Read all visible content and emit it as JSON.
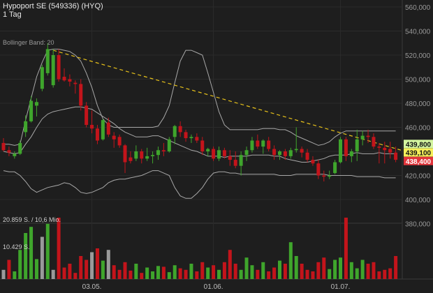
{
  "header": {
    "title": "Hypoport SE (549336) (HYQ)",
    "interval": "1 Tag"
  },
  "indicator_label": "Bollinger Band: 20",
  "volume_label_top": "20.859 S. / 10,6 Mio.",
  "volume_label_mid": "10.429 S.",
  "colors": {
    "up": "#3fa52c",
    "down": "#c3141b",
    "neutral": "#9a9a9a",
    "band": "#a8a8a8",
    "trend": "#e8c21a",
    "badge_upper": "#d4f5a0",
    "badge_last": "#f6f05a",
    "badge_lower": "#e2353b"
  },
  "chart_data": {
    "type": "candlestick",
    "title": "Hypoport SE (549336) (HYQ)",
    "price_axis": {
      "ylim": [
        370000,
        567000
      ],
      "ticks": [
        "560,000",
        "540,000",
        "520,000",
        "500,000",
        "480,000",
        "460,000",
        "440,000",
        "420,000",
        "400,000",
        "380,000"
      ],
      "tick_values": [
        560000,
        540000,
        520000,
        500000,
        480000,
        460000,
        440000,
        420000,
        400000,
        380000
      ]
    },
    "x_ticks": [
      {
        "label": "03.05.",
        "index": 16
      },
      {
        "label": "01.06.",
        "index": 38
      },
      {
        "label": "01.07.",
        "index": 61
      }
    ],
    "badges": [
      {
        "label": "439,800",
        "value": 439800,
        "kind": "upper"
      },
      {
        "label": "439,100",
        "value": 439100,
        "kind": "last"
      },
      {
        "label": "438,400",
        "value": 438400,
        "kind": "lower"
      }
    ],
    "trendline": {
      "from": {
        "index": 9,
        "price": 524000
      },
      "to": {
        "index": 72,
        "price": 441000
      }
    },
    "bollinger": {
      "upper": [
        446,
        446,
        445,
        446,
        466,
        484,
        502,
        514,
        524,
        525,
        525,
        524,
        523,
        520,
        515,
        505,
        493,
        478,
        467,
        462,
        460,
        460,
        460,
        460,
        460,
        460,
        460,
        460,
        461,
        468,
        478,
        497,
        515,
        524,
        524,
        522,
        520,
        505,
        489,
        473,
        462,
        458,
        458,
        458,
        458,
        458,
        458,
        459,
        459,
        459,
        458,
        458,
        456,
        453,
        451,
        449,
        447,
        445,
        446,
        448,
        452,
        455,
        457,
        457,
        457,
        457,
        457,
        457,
        457,
        457,
        457,
        457
      ],
      "middle": [
        440,
        439,
        438,
        439,
        446,
        452,
        460,
        467,
        471,
        473,
        474,
        475,
        476,
        477,
        477,
        476,
        475,
        472,
        469,
        466,
        463,
        459,
        456,
        454,
        452,
        452,
        452,
        453,
        453,
        451,
        449,
        447,
        445,
        443,
        441,
        440,
        438,
        436,
        436,
        436,
        435,
        436,
        436,
        436,
        436,
        437,
        437,
        437,
        437,
        436,
        436,
        434,
        433,
        432,
        431,
        431,
        432,
        433,
        434,
        436,
        437,
        437,
        437,
        438,
        439,
        438,
        438,
        438,
        439,
        438,
        438,
        438
      ],
      "lower": [
        424,
        423,
        423,
        420,
        415,
        409,
        406,
        408,
        410,
        411,
        412,
        414,
        413,
        410,
        406,
        405,
        406,
        408,
        410,
        414,
        416,
        417,
        417,
        418,
        419,
        420,
        422,
        424,
        424,
        422,
        420,
        410,
        403,
        401,
        401,
        405,
        410,
        417,
        422,
        423,
        423,
        422,
        422,
        421,
        421,
        421,
        421,
        421,
        421,
        421,
        420,
        420,
        420,
        421,
        421,
        421,
        421,
        421,
        421,
        420,
        420,
        420,
        420,
        420,
        419,
        419,
        419,
        419,
        419,
        418,
        418,
        418
      ]
    },
    "candles": [
      {
        "o": 447,
        "h": 451,
        "l": 440,
        "c": 441,
        "v": 12
      },
      {
        "o": 441,
        "h": 444,
        "l": 436,
        "c": 439,
        "v": 25
      },
      {
        "o": 436,
        "h": 440,
        "l": 434,
        "c": 438,
        "v": 10
      },
      {
        "o": 438,
        "h": 449,
        "l": 437,
        "c": 447,
        "v": 38
      },
      {
        "o": 456,
        "h": 470,
        "l": 452,
        "c": 465,
        "v": 60
      },
      {
        "o": 465,
        "h": 486,
        "l": 464,
        "c": 482,
        "v": 68
      },
      {
        "o": 478,
        "h": 484,
        "l": 469,
        "c": 481,
        "v": 26
      },
      {
        "o": 492,
        "h": 512,
        "l": 490,
        "c": 510,
        "v": 55
      },
      {
        "o": 505,
        "h": 530,
        "l": 503,
        "c": 525,
        "v": 72
      },
      {
        "o": 495,
        "h": 525,
        "l": 493,
        "c": 520,
        "v": 12
      },
      {
        "o": 520,
        "h": 525,
        "l": 498,
        "c": 500,
        "v": 80
      },
      {
        "o": 502,
        "h": 509,
        "l": 498,
        "c": 499,
        "v": 15
      },
      {
        "o": 500,
        "h": 504,
        "l": 494,
        "c": 498,
        "v": 20
      },
      {
        "o": 497,
        "h": 499,
        "l": 488,
        "c": 496,
        "v": 8
      },
      {
        "o": 496,
        "h": 500,
        "l": 474,
        "c": 478,
        "v": 30
      },
      {
        "o": 478,
        "h": 481,
        "l": 460,
        "c": 462,
        "v": 25
      },
      {
        "o": 462,
        "h": 474,
        "l": 455,
        "c": 459,
        "v": 35
      },
      {
        "o": 459,
        "h": 462,
        "l": 446,
        "c": 449,
        "v": 40
      },
      {
        "o": 450,
        "h": 467,
        "l": 449,
        "c": 466,
        "v": 24
      },
      {
        "o": 464,
        "h": 468,
        "l": 452,
        "c": 454,
        "v": 38
      },
      {
        "o": 453,
        "h": 456,
        "l": 443,
        "c": 450,
        "v": 18
      },
      {
        "o": 452,
        "h": 454,
        "l": 443,
        "c": 445,
        "v": 12
      },
      {
        "o": 445,
        "h": 446,
        "l": 422,
        "c": 431,
        "v": 22
      },
      {
        "o": 435,
        "h": 440,
        "l": 430,
        "c": 432,
        "v": 11
      },
      {
        "o": 434,
        "h": 445,
        "l": 432,
        "c": 440,
        "v": 20
      },
      {
        "o": 440,
        "h": 442,
        "l": 430,
        "c": 434,
        "v": 8
      },
      {
        "o": 434,
        "h": 443,
        "l": 432,
        "c": 436,
        "v": 15
      },
      {
        "o": 436,
        "h": 440,
        "l": 430,
        "c": 437,
        "v": 10
      },
      {
        "o": 437,
        "h": 444,
        "l": 433,
        "c": 441,
        "v": 17
      },
      {
        "o": 441,
        "h": 447,
        "l": 436,
        "c": 440,
        "v": 16
      },
      {
        "o": 440,
        "h": 452,
        "l": 439,
        "c": 450,
        "v": 9
      },
      {
        "o": 452,
        "h": 462,
        "l": 446,
        "c": 461,
        "v": 18
      },
      {
        "o": 461,
        "h": 465,
        "l": 452,
        "c": 456,
        "v": 14
      },
      {
        "o": 456,
        "h": 458,
        "l": 448,
        "c": 451,
        "v": 12
      },
      {
        "o": 451,
        "h": 454,
        "l": 447,
        "c": 452,
        "v": 20
      },
      {
        "o": 452,
        "h": 455,
        "l": 447,
        "c": 449,
        "v": 10
      },
      {
        "o": 449,
        "h": 452,
        "l": 437,
        "c": 440,
        "v": 22
      },
      {
        "o": 440,
        "h": 443,
        "l": 436,
        "c": 442,
        "v": 15
      },
      {
        "o": 442,
        "h": 444,
        "l": 432,
        "c": 434,
        "v": 18
      },
      {
        "o": 434,
        "h": 444,
        "l": 432,
        "c": 441,
        "v": 12
      },
      {
        "o": 441,
        "h": 443,
        "l": 434,
        "c": 436,
        "v": 22
      },
      {
        "o": 436,
        "h": 441,
        "l": 428,
        "c": 433,
        "v": 38
      },
      {
        "o": 433,
        "h": 440,
        "l": 426,
        "c": 428,
        "v": 20
      },
      {
        "o": 428,
        "h": 440,
        "l": 420,
        "c": 437,
        "v": 12
      },
      {
        "o": 437,
        "h": 444,
        "l": 432,
        "c": 441,
        "v": 28
      },
      {
        "o": 441,
        "h": 452,
        "l": 439,
        "c": 449,
        "v": 18
      },
      {
        "o": 449,
        "h": 454,
        "l": 442,
        "c": 444,
        "v": 12
      },
      {
        "o": 444,
        "h": 450,
        "l": 438,
        "c": 449,
        "v": 22
      },
      {
        "o": 449,
        "h": 452,
        "l": 440,
        "c": 442,
        "v": 10
      },
      {
        "o": 442,
        "h": 445,
        "l": 433,
        "c": 437,
        "v": 15
      },
      {
        "o": 437,
        "h": 441,
        "l": 433,
        "c": 440,
        "v": 24
      },
      {
        "o": 440,
        "h": 442,
        "l": 433,
        "c": 436,
        "v": 20
      },
      {
        "o": 436,
        "h": 443,
        "l": 434,
        "c": 441,
        "v": 48
      },
      {
        "o": 441,
        "h": 460,
        "l": 439,
        "c": 442,
        "v": 30
      },
      {
        "o": 442,
        "h": 444,
        "l": 435,
        "c": 439,
        "v": 20
      },
      {
        "o": 439,
        "h": 442,
        "l": 431,
        "c": 433,
        "v": 12
      },
      {
        "o": 433,
        "h": 436,
        "l": 428,
        "c": 430,
        "v": 10
      },
      {
        "o": 430,
        "h": 433,
        "l": 417,
        "c": 420,
        "v": 22
      },
      {
        "o": 420,
        "h": 424,
        "l": 415,
        "c": 419,
        "v": 28
      },
      {
        "o": 419,
        "h": 424,
        "l": 417,
        "c": 420,
        "v": 13
      },
      {
        "o": 422,
        "h": 433,
        "l": 421,
        "c": 431,
        "v": 25
      },
      {
        "o": 431,
        "h": 452,
        "l": 430,
        "c": 450,
        "v": 28
      },
      {
        "o": 450,
        "h": 452,
        "l": 432,
        "c": 436,
        "v": 80
      },
      {
        "o": 436,
        "h": 442,
        "l": 431,
        "c": 440,
        "v": 22
      },
      {
        "o": 440,
        "h": 458,
        "l": 432,
        "c": 450,
        "v": 14
      },
      {
        "o": 450,
        "h": 457,
        "l": 445,
        "c": 453,
        "v": 25
      },
      {
        "o": 453,
        "h": 458,
        "l": 447,
        "c": 452,
        "v": 20
      },
      {
        "o": 452,
        "h": 455,
        "l": 442,
        "c": 444,
        "v": 22
      },
      {
        "o": 444,
        "h": 447,
        "l": 430,
        "c": 443,
        "v": 10
      },
      {
        "o": 443,
        "h": 448,
        "l": 430,
        "c": 441,
        "v": 12
      },
      {
        "o": 442,
        "h": 448,
        "l": 434,
        "c": 439,
        "v": 14
      },
      {
        "o": 439,
        "h": 444,
        "l": 431,
        "c": 433,
        "v": 30
      }
    ],
    "neutral_volume_indices": [
      0,
      7,
      9,
      16,
      19
    ]
  }
}
